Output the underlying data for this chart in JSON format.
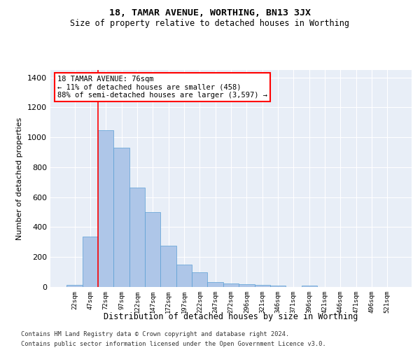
{
  "title1": "18, TAMAR AVENUE, WORTHING, BN13 3JX",
  "title2": "Size of property relative to detached houses in Worthing",
  "xlabel": "Distribution of detached houses by size in Worthing",
  "ylabel": "Number of detached properties",
  "categories": [
    "22sqm",
    "47sqm",
    "72sqm",
    "97sqm",
    "122sqm",
    "147sqm",
    "172sqm",
    "197sqm",
    "222sqm",
    "247sqm",
    "272sqm",
    "296sqm",
    "321sqm",
    "346sqm",
    "371sqm",
    "396sqm",
    "421sqm",
    "446sqm",
    "471sqm",
    "496sqm",
    "521sqm"
  ],
  "values": [
    15,
    335,
    1050,
    930,
    665,
    500,
    275,
    150,
    100,
    35,
    25,
    20,
    15,
    10,
    0,
    10,
    0,
    0,
    0,
    0,
    0
  ],
  "bar_color": "#aec6e8",
  "bar_edge_color": "#5a9fd4",
  "red_line_index": 2,
  "property_label": "18 TAMAR AVENUE: 76sqm",
  "annotation_line1": "← 11% of detached houses are smaller (458)",
  "annotation_line2": "88% of semi-detached houses are larger (3,597) →",
  "annotation_box_color": "white",
  "annotation_box_edge": "red",
  "background_color": "#e8eef7",
  "ylim": [
    0,
    1450
  ],
  "yticks": [
    0,
    200,
    400,
    600,
    800,
    1000,
    1200,
    1400
  ],
  "footnote_line1": "Contains HM Land Registry data © Crown copyright and database right 2024.",
  "footnote_line2": "Contains public sector information licensed under the Open Government Licence v3.0."
}
